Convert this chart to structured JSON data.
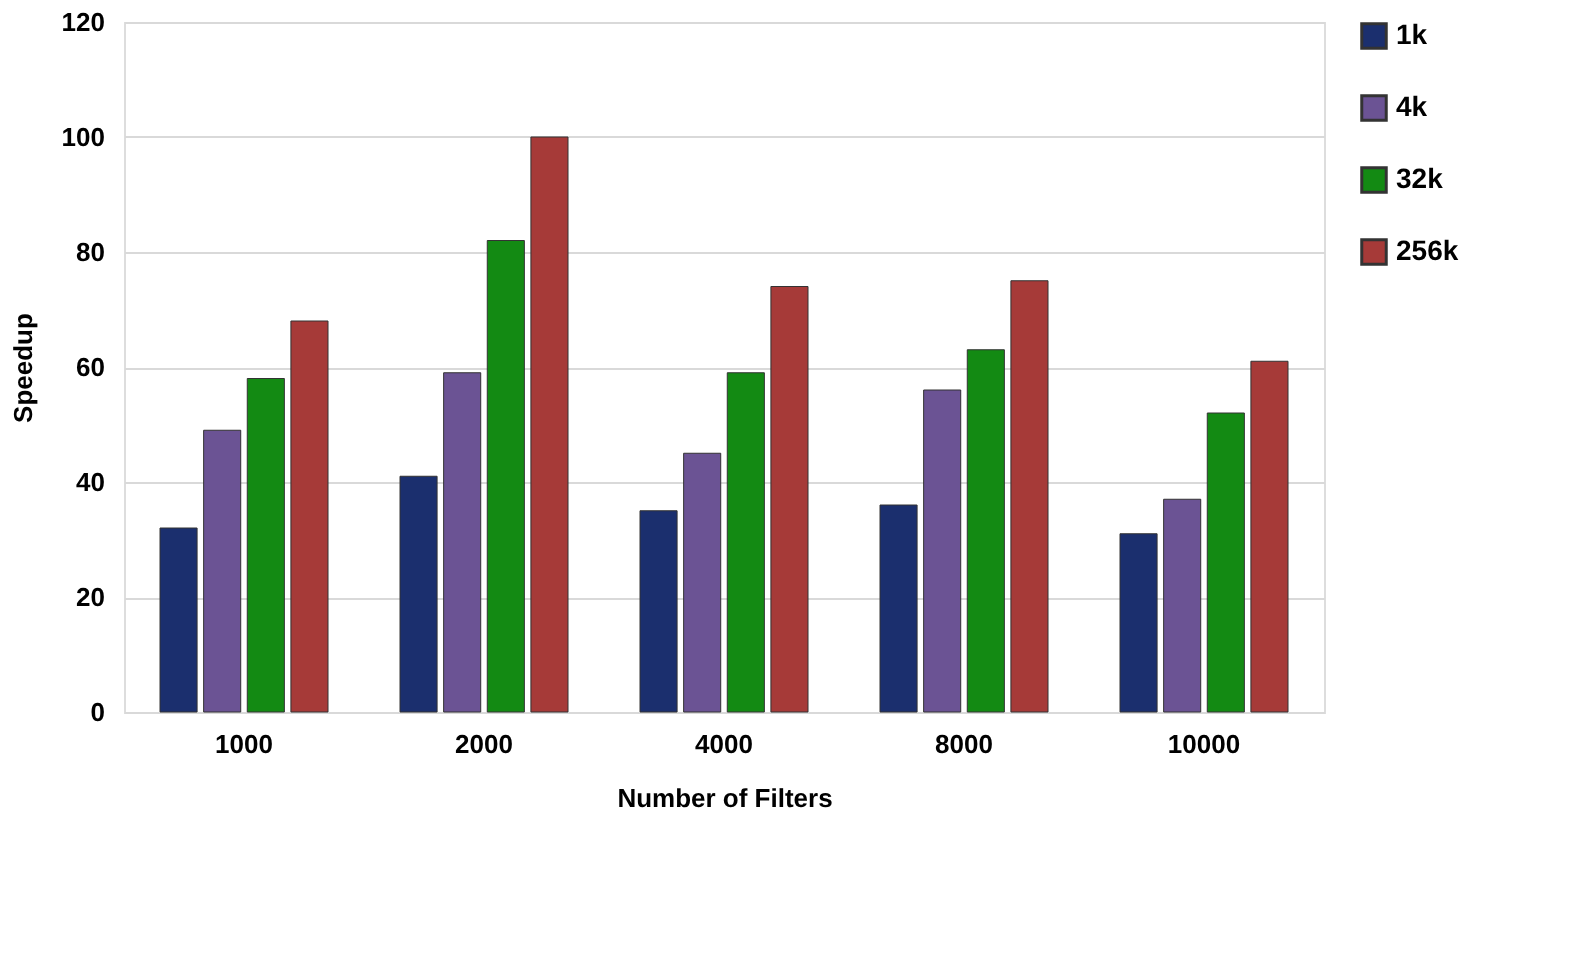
{
  "chart_data": {
    "type": "bar",
    "xlabel": "Number of Filters",
    "ylabel": "Speedup",
    "categories": [
      "1000",
      "2000",
      "4000",
      "8000",
      "10000"
    ],
    "series": [
      {
        "name": "1k",
        "color": "#1b2f6e",
        "values": [
          32,
          41,
          35,
          36,
          31
        ]
      },
      {
        "name": "4k",
        "color": "#6b5394",
        "values": [
          49,
          59,
          45,
          56,
          37
        ]
      },
      {
        "name": "32k",
        "color": "#138a13",
        "values": [
          58,
          82,
          59,
          63,
          52
        ]
      },
      {
        "name": "256k",
        "color": "#a63a38",
        "values": [
          68,
          100,
          74,
          75,
          61
        ]
      }
    ],
    "ylim": [
      0,
      120
    ],
    "yticks": [
      0,
      20,
      40,
      60,
      80,
      100,
      120
    ],
    "grid": "y",
    "legend": "right"
  }
}
